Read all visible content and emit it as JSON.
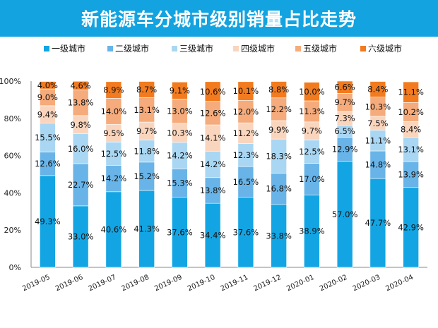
{
  "chart_data": {
    "type": "bar",
    "stacked": true,
    "title": "新能源车分城市级别销量占比走势",
    "categories": [
      "2019-05",
      "2019-06",
      "2019-07",
      "2019-08",
      "2019-09",
      "2019-10",
      "2019-11",
      "2019-12",
      "2020-01",
      "2020-02",
      "2020-03",
      "2020-04"
    ],
    "series": [
      {
        "name": "一级城市",
        "color": "#13a5e3",
        "values": [
          49.3,
          33.0,
          40.6,
          41.3,
          37.6,
          34.4,
          37.6,
          33.8,
          38.9,
          57.0,
          47.7,
          42.9
        ],
        "labels": [
          "49.3%",
          "33.0%",
          "40.6%",
          "41.3%",
          "37.6%",
          "34.4%",
          "37.6%",
          "33.8%",
          "38.9%",
          "57.0%",
          "47.7%",
          "42.9%"
        ]
      },
      {
        "name": "二级城市",
        "color": "#68b4e8",
        "values": [
          12.6,
          22.7,
          14.2,
          15.2,
          15.3,
          13.8,
          16.5,
          16.8,
          17.0,
          12.9,
          14.8,
          13.9
        ],
        "labels": [
          "12.6%",
          "22.7%",
          "14.2%",
          "15.2%",
          "15.3%",
          "13.8%",
          "16.5%",
          "16.8%",
          "17.0%",
          "12.9%",
          "14.8%",
          "13.9%"
        ]
      },
      {
        "name": "三级城市",
        "color": "#a9d7f3",
        "values": [
          15.5,
          16.0,
          12.5,
          11.8,
          14.2,
          14.2,
          12.3,
          18.3,
          12.5,
          6.5,
          11.1,
          13.1
        ],
        "labels": [
          "15.5%",
          "16.0%",
          "12.5%",
          "11.8%",
          "14.2%",
          "14.2%",
          "12.3%",
          "18.3%",
          "12.5%",
          "6.5%",
          "11.1%",
          "13.1%"
        ]
      },
      {
        "name": "四级城市",
        "color": "#fad5bd",
        "values": [
          9.4,
          9.8,
          9.5,
          9.7,
          10.3,
          14.1,
          11.2,
          9.9,
          9.7,
          7.3,
          7.5,
          8.4
        ],
        "labels": [
          "9.4%",
          "9.8%",
          "9.5%",
          "9.7%",
          "10.3%",
          "14.1%",
          "11.2%",
          "9.9%",
          "9.7%",
          "7.3%",
          "7.5%",
          "8.4%"
        ]
      },
      {
        "name": "五级城市",
        "color": "#f5ab7b",
        "values": [
          9.0,
          13.8,
          14.0,
          13.1,
          13.0,
          12.6,
          12.0,
          12.2,
          11.3,
          9.7,
          10.3,
          10.2
        ],
        "labels": [
          "9.0%",
          "13.8%",
          "14.0%",
          "13.1%",
          "13.0%",
          "12.6%",
          "12.0%",
          "12.2%",
          "11.3%",
          "9.7%",
          "10.3%",
          "10.2%"
        ]
      },
      {
        "name": "六级城市",
        "color": "#f27b1f",
        "values": [
          4.0,
          4.6,
          8.9,
          8.7,
          9.1,
          10.6,
          10.1,
          8.8,
          10.0,
          6.6,
          8.4,
          11.1
        ],
        "labels": [
          "4.0%",
          "4.6%",
          "8.9%",
          "8.7%",
          "9.1%",
          "10.6%",
          "10.1%",
          "8.8%",
          "10.0%",
          "6.6%",
          "8.4%",
          "11.1%"
        ]
      }
    ],
    "ylim": [
      0,
      100
    ],
    "yticks": [
      "0%",
      "20%",
      "40%",
      "60%",
      "80%",
      "100%"
    ],
    "xlabel": "",
    "ylabel": "",
    "legend_position": "top",
    "grid": false
  }
}
